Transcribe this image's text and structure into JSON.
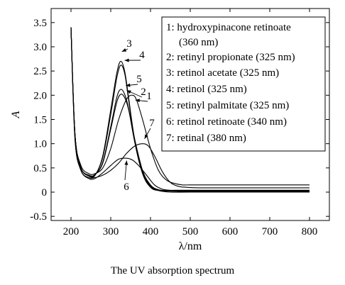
{
  "chart_data": {
    "type": "line",
    "xlabel": "λ/nm",
    "ylabel": "A",
    "caption": "The UV absorption spectrum",
    "xlim": [
      150,
      850
    ],
    "ylim": [
      -0.5,
      3.6
    ],
    "xticks": [
      200,
      300,
      400,
      500,
      600,
      700,
      800
    ],
    "yticks": [
      -0.5,
      0,
      0.5,
      1.0,
      1.5,
      2.0,
      2.5,
      3.0,
      3.5
    ],
    "ytick_labels": [
      "-0.5",
      "0",
      "0.5",
      "1.0",
      "1.5",
      "2.0",
      "2.5",
      "3.0",
      "3.5"
    ],
    "legend": {
      "placement": "top-right",
      "entries": [
        "1: hydroxypinacone retinoate",
        "(360 nm)",
        "2: retinyl propionate (325 nm)",
        "3: retinol acetate (325 nm)",
        "4: retinol (325 nm)",
        "5: retinyl palmitate (325 nm)",
        "6: retinol retinoate (340 nm)",
        "7: retinal (380 nm)"
      ]
    },
    "annotations": [
      {
        "label": "3",
        "x": 328,
        "y": 2.9
      },
      {
        "label": "4",
        "x": 335,
        "y": 2.72
      },
      {
        "label": "5",
        "x": 338,
        "y": 2.2
      },
      {
        "label": "2",
        "x": 340,
        "y": 2.1
      },
      {
        "label": "1",
        "x": 362,
        "y": 1.9
      },
      {
        "label": "7",
        "x": 385,
        "y": 1.1
      },
      {
        "label": "6",
        "x": 340,
        "y": 0.65
      }
    ],
    "series": [
      {
        "id": "1",
        "x": [
          200,
          210,
          225,
          245,
          260,
          280,
          300,
          320,
          340,
          355,
          365,
          380,
          400,
          420,
          440,
          460,
          480,
          500,
          550,
          600,
          700,
          800
        ],
        "y": [
          3.4,
          1.2,
          0.55,
          0.38,
          0.38,
          0.5,
          0.9,
          1.5,
          1.92,
          2.0,
          1.9,
          1.5,
          0.9,
          0.45,
          0.25,
          0.18,
          0.15,
          0.15,
          0.15,
          0.15,
          0.15,
          0.15
        ]
      },
      {
        "id": "2",
        "x": [
          200,
          210,
          225,
          245,
          260,
          280,
          300,
          315,
          325,
          335,
          345,
          360,
          380,
          400,
          420,
          450,
          500,
          600,
          700,
          800
        ],
        "y": [
          3.4,
          1.2,
          0.5,
          0.35,
          0.36,
          0.6,
          1.3,
          1.85,
          2.02,
          1.95,
          1.7,
          1.1,
          0.45,
          0.15,
          0.05,
          0.02,
          0.01,
          0.01,
          0.01,
          0.01
        ]
      },
      {
        "id": "3",
        "x": [
          200,
          210,
          225,
          245,
          260,
          280,
          300,
          315,
          325,
          335,
          345,
          360,
          380,
          400,
          420,
          450,
          500,
          600,
          700,
          800
        ],
        "y": [
          3.4,
          1.2,
          0.5,
          0.33,
          0.34,
          0.75,
          1.7,
          2.45,
          2.7,
          2.5,
          1.95,
          1.1,
          0.4,
          0.12,
          0.04,
          0.02,
          0.02,
          0.02,
          0.02,
          0.02
        ]
      },
      {
        "id": "4",
        "x": [
          200,
          210,
          225,
          245,
          260,
          280,
          300,
          315,
          325,
          335,
          345,
          360,
          380,
          400,
          420,
          450,
          500,
          600,
          700,
          800
        ],
        "y": [
          3.4,
          1.2,
          0.5,
          0.34,
          0.35,
          0.72,
          1.6,
          2.35,
          2.62,
          2.45,
          1.9,
          1.05,
          0.38,
          0.1,
          0.03,
          0.0,
          0.0,
          0.0,
          0.0,
          0.0
        ]
      },
      {
        "id": "5",
        "x": [
          200,
          210,
          225,
          245,
          260,
          280,
          300,
          315,
          325,
          335,
          345,
          360,
          380,
          400,
          420,
          450,
          500,
          600,
          700,
          800
        ],
        "y": [
          3.4,
          1.2,
          0.5,
          0.35,
          0.36,
          0.62,
          1.35,
          1.95,
          2.12,
          2.02,
          1.72,
          1.05,
          0.42,
          0.14,
          0.05,
          0.03,
          0.03,
          0.03,
          0.03,
          0.03
        ]
      },
      {
        "id": "6",
        "x": [
          200,
          210,
          225,
          245,
          260,
          280,
          300,
          320,
          340,
          355,
          370,
          390,
          410,
          430,
          450,
          470,
          500,
          600,
          700,
          800
        ],
        "y": [
          3.4,
          1.1,
          0.45,
          0.28,
          0.28,
          0.4,
          0.55,
          0.68,
          0.7,
          0.66,
          0.55,
          0.35,
          0.15,
          0.06,
          0.04,
          0.04,
          0.04,
          0.04,
          0.04,
          0.04
        ]
      },
      {
        "id": "7",
        "x": [
          200,
          210,
          225,
          245,
          260,
          280,
          300,
          320,
          340,
          360,
          380,
          395,
          410,
          430,
          450,
          470,
          490,
          520,
          600,
          700,
          800
        ],
        "y": [
          3.4,
          1.1,
          0.45,
          0.3,
          0.3,
          0.35,
          0.45,
          0.6,
          0.8,
          0.95,
          1.0,
          0.95,
          0.75,
          0.42,
          0.2,
          0.12,
          0.1,
          0.09,
          0.09,
          0.09,
          0.09
        ]
      }
    ]
  }
}
